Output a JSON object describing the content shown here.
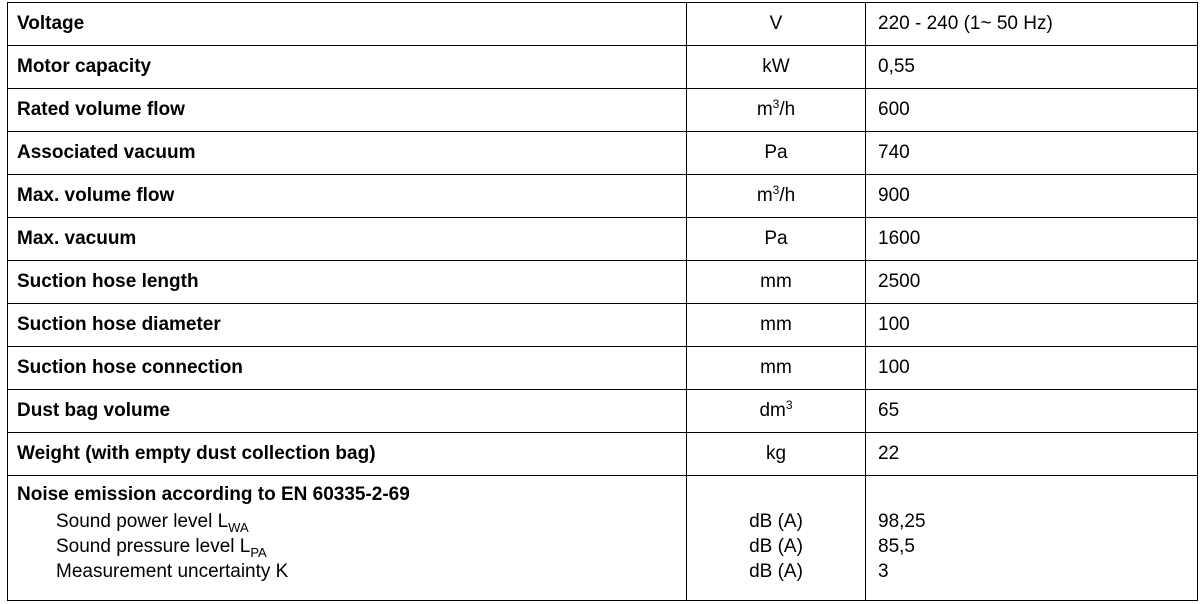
{
  "rows": [
    {
      "label": "Voltage",
      "unit": {
        "base": "V",
        "sup": "",
        "suffix": ""
      },
      "value": "220 - 240  (1~ 50 Hz)"
    },
    {
      "label": "Motor capacity",
      "unit": {
        "base": "kW",
        "sup": "",
        "suffix": ""
      },
      "value": "0,55"
    },
    {
      "label": "Rated volume flow",
      "unit": {
        "base": "m",
        "sup": "3",
        "suffix": "/h"
      },
      "value": "600"
    },
    {
      "label": "Associated vacuum",
      "unit": {
        "base": "Pa",
        "sup": "",
        "suffix": ""
      },
      "value": "740"
    },
    {
      "label": "Max. volume flow",
      "unit": {
        "base": "m",
        "sup": "3",
        "suffix": "/h"
      },
      "value": "900"
    },
    {
      "label": "Max. vacuum",
      "unit": {
        "base": "Pa",
        "sup": "",
        "suffix": ""
      },
      "value": "1600"
    },
    {
      "label": "Suction hose length",
      "unit": {
        "base": "mm",
        "sup": "",
        "suffix": ""
      },
      "value": "2500"
    },
    {
      "label": "Suction hose diameter",
      "unit": {
        "base": "mm",
        "sup": "",
        "suffix": ""
      },
      "value": "100"
    },
    {
      "label": "Suction hose connection",
      "unit": {
        "base": "mm",
        "sup": "",
        "suffix": ""
      },
      "value": "100"
    },
    {
      "label": "Dust bag volume",
      "unit": {
        "base": "dm",
        "sup": "3",
        "suffix": ""
      },
      "value": "65"
    },
    {
      "label": "Weight (with empty dust collection bag)",
      "unit": {
        "base": "kg",
        "sup": "",
        "suffix": ""
      },
      "value": "22"
    }
  ],
  "noise": {
    "heading": "Noise emission according to EN 60335-2-69",
    "items": [
      {
        "label": "Sound power level L",
        "sub": "WA",
        "unit": "dB (A)",
        "value": "98,25"
      },
      {
        "label": "Sound pressure level L",
        "sub": "PA",
        "unit": "dB (A)",
        "value": "85,5"
      },
      {
        "label": "Measurement uncertainty K",
        "sub": "",
        "unit": "dB (A)",
        "value": "3"
      }
    ]
  }
}
